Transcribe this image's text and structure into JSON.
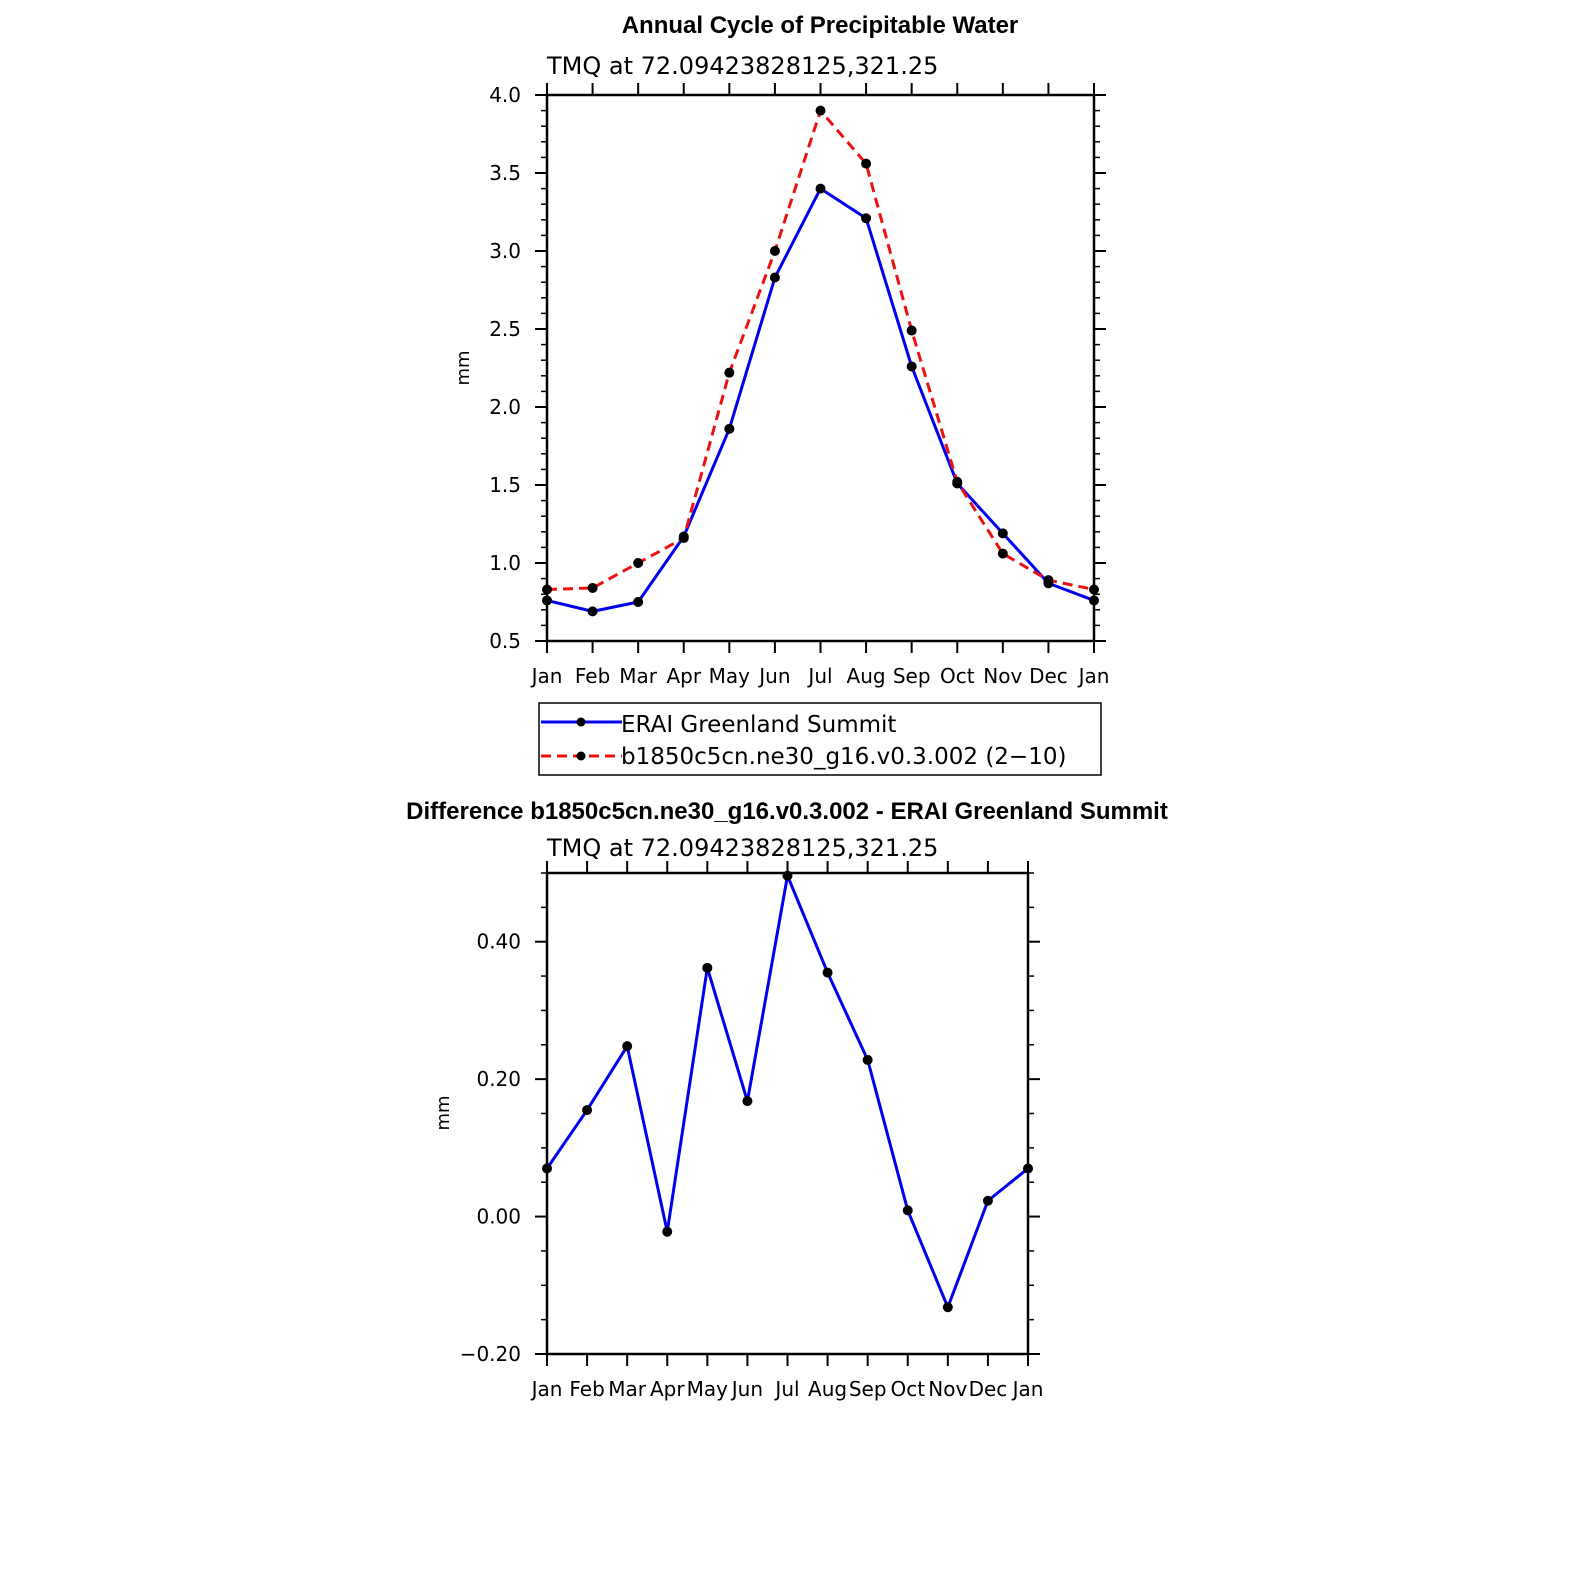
{
  "chart_data": [
    {
      "type": "line",
      "title": "Annual Cycle of Precipitable Water",
      "subtitle": "TMQ at 72.09423828125,321.25",
      "xlabel": "",
      "ylabel": "mm",
      "categories": [
        "Jan",
        "Feb",
        "Mar",
        "Apr",
        "May",
        "Jun",
        "Jul",
        "Aug",
        "Sep",
        "Oct",
        "Nov",
        "Dec",
        "Jan"
      ],
      "ylim": [
        0.5,
        4.0
      ],
      "yticks": [
        "0.5",
        "1.0",
        "1.5",
        "2.0",
        "2.5",
        "3.0",
        "3.5",
        "4.0"
      ],
      "legend_position": "bottom",
      "grid": false,
      "series": [
        {
          "name": "ERAI Greenland Summit",
          "color": "#0000ee",
          "dash": "solid",
          "values": [
            0.76,
            0.69,
            0.75,
            1.17,
            1.86,
            2.83,
            3.4,
            3.21,
            2.26,
            1.51,
            1.19,
            0.87,
            0.76
          ]
        },
        {
          "name": "b1850c5cn.ne30_g16.v0.3.002 (2−10)",
          "color": "#ee1111",
          "dash": "dashed",
          "values": [
            0.83,
            0.84,
            1.0,
            1.16,
            2.22,
            3.0,
            3.9,
            3.56,
            2.49,
            1.52,
            1.06,
            0.89,
            0.83
          ]
        }
      ]
    },
    {
      "type": "line",
      "title": "Difference b1850c5cn.ne30_g16.v0.3.002 - ERAI Greenland Summit",
      "subtitle": "TMQ at 72.09423828125,321.25",
      "xlabel": "",
      "ylabel": "mm",
      "categories": [
        "Jan",
        "Feb",
        "Mar",
        "Apr",
        "May",
        "Jun",
        "Jul",
        "Aug",
        "Sep",
        "Oct",
        "Nov",
        "Dec",
        "Jan"
      ],
      "ylim": [
        -0.2,
        0.5
      ],
      "yticks": [
        "−0.20",
        "0.00",
        "0.20",
        "0.40"
      ],
      "grid": false,
      "series": [
        {
          "color": "#0000ee",
          "dash": "solid",
          "values": [
            0.07,
            0.155,
            0.248,
            -0.022,
            0.362,
            0.168,
            0.496,
            0.355,
            0.228,
            0.009,
            -0.132,
            0.023,
            0.07
          ]
        }
      ]
    }
  ]
}
